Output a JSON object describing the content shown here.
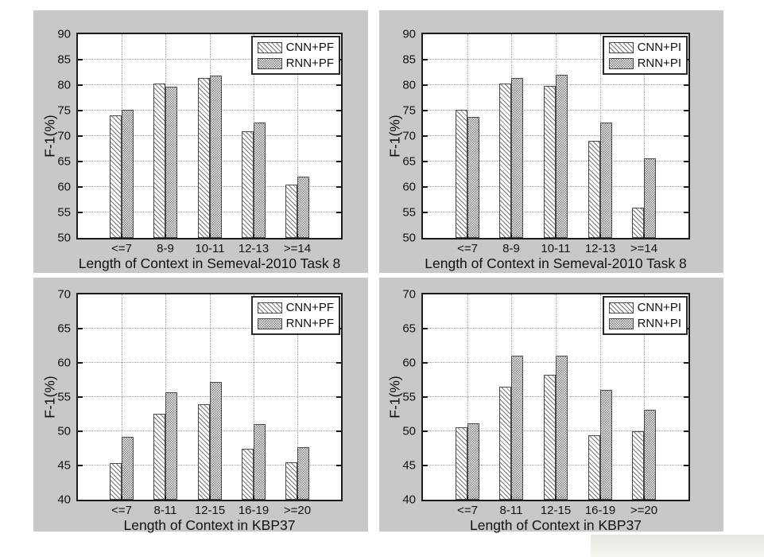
{
  "figure": {
    "description": "2x2 grid of grouped bar charts comparing F-1 scores by context length",
    "panel_background": "#c8c8c8",
    "page_background": "#ffffff"
  },
  "colors": {
    "panel-bg": "#c8c8c8",
    "plot-bg": "#ffffff",
    "axis-color": "#1b1b1b",
    "grid-color": "#9a9a9a",
    "hatch-color": "#757575",
    "bar-edge": "#4a4a4a",
    "text-color": "#111111"
  },
  "chart_data": [
    {
      "type": "bar",
      "title": "",
      "xlabel": "Length of Context in Semeval-2010 Task 8",
      "ylabel": "F-1(%)",
      "ylim": [
        50,
        90
      ],
      "yticks": [
        50,
        55,
        60,
        65,
        70,
        75,
        80,
        85,
        90
      ],
      "grid": true,
      "legend_position": "top-right",
      "categories": [
        "<=7",
        "8-9",
        "10-11",
        "12-13",
        ">=14"
      ],
      "series": [
        {
          "name": "CNN+PF",
          "hatch": "diagonal",
          "values": [
            74.0,
            80.3,
            81.4,
            70.9,
            60.5
          ]
        },
        {
          "name": "RNN+PF",
          "hatch": "checker",
          "values": [
            75.1,
            79.7,
            81.9,
            72.6,
            62.1
          ]
        }
      ]
    },
    {
      "type": "bar",
      "title": "",
      "xlabel": "Length of Context in Semeval-2010 Task 8",
      "ylabel": "F-1(%)",
      "ylim": [
        50,
        90
      ],
      "yticks": [
        50,
        55,
        60,
        65,
        70,
        75,
        80,
        85,
        90
      ],
      "grid": true,
      "legend_position": "top-right",
      "categories": [
        "<=7",
        "8-9",
        "10-11",
        "12-13",
        ">=14"
      ],
      "series": [
        {
          "name": "CNN+PI",
          "hatch": "diagonal",
          "values": [
            75.1,
            80.3,
            79.8,
            69.0,
            56.0
          ]
        },
        {
          "name": "RNN+PI",
          "hatch": "checker",
          "values": [
            73.7,
            81.4,
            82.1,
            72.6,
            65.6
          ]
        }
      ]
    },
    {
      "type": "bar",
      "title": "",
      "xlabel": "Length of Context in KBP37",
      "ylabel": "F-1(%)",
      "ylim": [
        40,
        70
      ],
      "yticks": [
        40,
        45,
        50,
        55,
        60,
        65,
        70
      ],
      "grid": true,
      "legend_position": "top-right",
      "categories": [
        "<=7",
        "8-11",
        "12-15",
        "16-19",
        ">=20"
      ],
      "series": [
        {
          "name": "CNN+PF",
          "hatch": "diagonal",
          "values": [
            45.3,
            52.6,
            54.0,
            47.4,
            45.5
          ]
        },
        {
          "name": "RNN+PF",
          "hatch": "checker",
          "values": [
            49.2,
            55.7,
            57.2,
            51.1,
            47.7
          ]
        }
      ]
    },
    {
      "type": "bar",
      "title": "",
      "xlabel": "Length of Context in KBP37",
      "ylabel": "F-1(%)",
      "ylim": [
        40,
        70
      ],
      "yticks": [
        40,
        45,
        50,
        55,
        60,
        65,
        70
      ],
      "grid": true,
      "legend_position": "top-right",
      "categories": [
        "<=7",
        "8-11",
        "12-15",
        "16-19",
        ">=20"
      ],
      "series": [
        {
          "name": "CNN+PI",
          "hatch": "diagonal",
          "values": [
            50.6,
            56.5,
            58.2,
            49.4,
            50.0
          ]
        },
        {
          "name": "RNN+PI",
          "hatch": "checker",
          "values": [
            51.2,
            61.1,
            61.1,
            56.0,
            53.1
          ]
        }
      ]
    }
  ]
}
